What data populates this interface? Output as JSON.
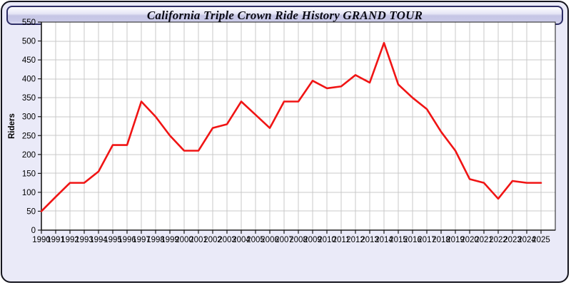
{
  "window": {
    "title": "California Triple Crown Ride History GRAND TOUR"
  },
  "chart_data": {
    "type": "line",
    "title": "California Triple Crown Ride History GRAND TOUR",
    "xlabel": "",
    "ylabel": "Riders",
    "x": [
      1990,
      1991,
      1992,
      1993,
      1994,
      1995,
      1996,
      1997,
      1998,
      1999,
      2000,
      2001,
      2002,
      2003,
      2004,
      2005,
      2006,
      2007,
      2008,
      2009,
      2010,
      2011,
      2012,
      2013,
      2014,
      2015,
      2016,
      2017,
      2018,
      2019,
      2020,
      2021,
      2022,
      2023,
      2024,
      2025
    ],
    "series": [
      {
        "name": "Riders",
        "values": [
          50,
          88,
          125,
          125,
          155,
          225,
          225,
          340,
          300,
          250,
          210,
          210,
          270,
          280,
          340,
          305,
          270,
          340,
          340,
          395,
          375,
          380,
          410,
          390,
          495,
          385,
          350,
          320,
          260,
          210,
          135,
          125,
          83,
          130,
          125,
          125
        ]
      }
    ],
    "ylim": [
      0,
      550
    ],
    "ytick_step": 50,
    "grid": true,
    "legend": "none"
  },
  "style": {
    "line_color": "#f01414",
    "grid_color": "#c9c9c9",
    "axis_color": "#1a1a1a",
    "plot_bg": "#ffffff",
    "panel_bg": "#eaeaf8",
    "label_color": "#000000"
  }
}
